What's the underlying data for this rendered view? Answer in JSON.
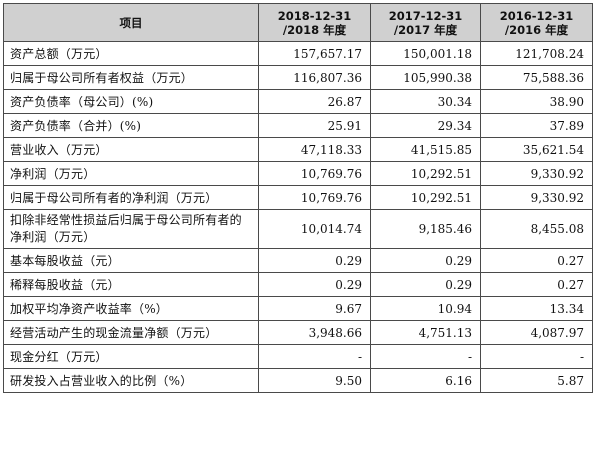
{
  "header": {
    "item": "项目",
    "cols": [
      {
        "line1": "2018-12-31",
        "line2": "/2018 年度"
      },
      {
        "line1": "2017-12-31",
        "line2": "/2017 年度"
      },
      {
        "line1": "2016-12-31",
        "line2": "/2016 年度"
      }
    ]
  },
  "rows": [
    {
      "label": "资产总额（万元）",
      "v": [
        "157,657.17",
        "150,001.18",
        "121,708.24"
      ]
    },
    {
      "label": "归属于母公司所有者权益（万元）",
      "v": [
        "116,807.36",
        "105,990.38",
        "75,588.36"
      ]
    },
    {
      "label": "资产负债率（母公司）(%)",
      "v": [
        "26.87",
        "30.34",
        "38.90"
      ]
    },
    {
      "label": "资产负债率（合并）(%)",
      "v": [
        "25.91",
        "29.34",
        "37.89"
      ]
    },
    {
      "label": "营业收入（万元）",
      "v": [
        "47,118.33",
        "41,515.85",
        "35,621.54"
      ]
    },
    {
      "label": "净利润（万元）",
      "v": [
        "10,769.76",
        "10,292.51",
        "9,330.92"
      ]
    },
    {
      "label": "归属于母公司所有者的净利润（万元）",
      "v": [
        "10,769.76",
        "10,292.51",
        "9,330.92"
      ]
    },
    {
      "label": "扣除非经常性损益后归属于母公司所有者的净利润（万元）",
      "v": [
        "10,014.74",
        "9,185.46",
        "8,455.08"
      ]
    },
    {
      "label": "基本每股收益（元）",
      "v": [
        "0.29",
        "0.29",
        "0.27"
      ]
    },
    {
      "label": "稀释每股收益（元）",
      "v": [
        "0.29",
        "0.29",
        "0.27"
      ]
    },
    {
      "label": "加权平均净资产收益率（%）",
      "v": [
        "9.67",
        "10.94",
        "13.34"
      ]
    },
    {
      "label": "经营活动产生的现金流量净额（万元）",
      "v": [
        "3,948.66",
        "4,751.13",
        "4,087.97"
      ]
    },
    {
      "label": "现金分红（万元）",
      "v": [
        "-",
        "-",
        "-"
      ]
    },
    {
      "label": "研发投入占营业收入的比例（%）",
      "v": [
        "9.50",
        "6.16",
        "5.87"
      ]
    }
  ]
}
